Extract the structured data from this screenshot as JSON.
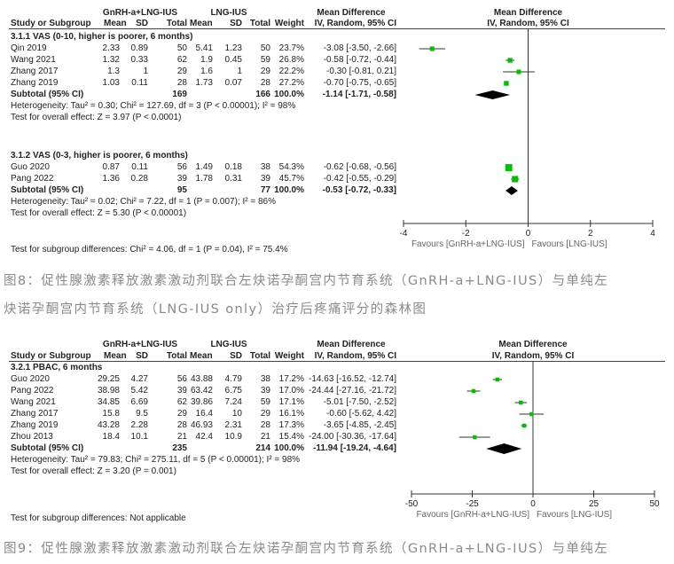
{
  "figures": [
    {
      "header": {
        "group1": "GnRH-a+LNG-IUS",
        "group2": "LNG-IUS",
        "effect": "Mean Difference",
        "columns": [
          "Study or Subgroup",
          "Mean",
          "SD",
          "Total",
          "Mean",
          "SD",
          "Total",
          "Weight",
          "IV, Random, 95% CI"
        ],
        "plot_title": "Mean Difference",
        "plot_subtitle": "IV, Random, 95% CI"
      },
      "subgroups": [
        {
          "title": "3.1.1 VAS (0-10, higher is poorer, 6 months)",
          "studies": [
            {
              "name": "Qin 2019",
              "mean1": "2.33",
              "sd1": "0.89",
              "total1": "50",
              "mean2": "5.41",
              "sd2": "1.23",
              "total2": "50",
              "weight": "23.7%",
              "ci": "-3.08 [-3.50, -2.66]"
            },
            {
              "name": "Wang 2021",
              "mean1": "1.32",
              "sd1": "0.33",
              "total1": "62",
              "mean2": "1.9",
              "sd2": "0.45",
              "total2": "59",
              "weight": "26.8%",
              "ci": "-0.58 [-0.72, -0.44]"
            },
            {
              "name": "Zhang 2017",
              "mean1": "1.3",
              "sd1": "1",
              "total1": "29",
              "mean2": "1.6",
              "sd2": "1",
              "total2": "29",
              "weight": "22.2%",
              "ci": "-0.30 [-0.81, 0.21]"
            },
            {
              "name": "Zhang 2019",
              "mean1": "1.03",
              "sd1": "0.11",
              "total1": "28",
              "mean2": "1.73",
              "sd2": "0.07",
              "total2": "28",
              "weight": "27.2%",
              "ci": "-0.70 [-0.75, -0.65]"
            }
          ],
          "subtotal": {
            "label": "Subtotal (95% CI)",
            "total1": "169",
            "total2": "166",
            "weight": "100.0%",
            "ci": "-1.14 [-1.71, -0.58]"
          },
          "heterogeneity": "Heterogeneity: Tau² = 0.30; Chi² = 127.69, df = 3 (P < 0.00001); I² = 98%",
          "overall": "Test for overall effect: Z = 3.97 (P < 0.0001)"
        },
        {
          "title": "3.1.2 VAS (0-3, higher is poorer, 6 months)",
          "studies": [
            {
              "name": "Guo 2020",
              "mean1": "0.87",
              "sd1": "0.11",
              "total1": "56",
              "mean2": "1.49",
              "sd2": "0.18",
              "total2": "38",
              "weight": "54.3%",
              "ci": "-0.62 [-0.68, -0.56]"
            },
            {
              "name": "Pang 2022",
              "mean1": "1.36",
              "sd1": "0.28",
              "total1": "39",
              "mean2": "1.78",
              "sd2": "0.31",
              "total2": "39",
              "weight": "45.7%",
              "ci": "-0.42 [-0.55, -0.29]"
            }
          ],
          "subtotal": {
            "label": "Subtotal (95% CI)",
            "total1": "95",
            "total2": "77",
            "weight": "100.0%",
            "ci": "-0.53 [-0.72, -0.33]"
          },
          "heterogeneity": "Heterogeneity: Tau² = 0.02; Chi² = 7.22, df = 1 (P = 0.007); I² = 86%",
          "overall": "Test for overall effect: Z = 5.30 (P < 0.00001)"
        }
      ],
      "subgroup_test": "Test for subgroup differences: Chi² = 4.06, df = 1 (P = 0.04), I² = 75.4%",
      "axis": {
        "ticks": [
          "-4",
          "-2",
          "0",
          "2",
          "4"
        ],
        "favours_left": "Favours [GnRH-a+LNG-IUS]",
        "favours_right": "Favours [LNG-IUS]"
      },
      "caption_lines": [
        "图8：促性腺激素释放激素激动剂联合左炔诺孕酮宫内节育系统（GnRH-a+LNG-IUS）与单纯左",
        "炔诺孕酮宫内节育系统（LNG-IUS only）治疗后疼痛评分的森林图"
      ]
    },
    {
      "header": {
        "group1": "GnRH-a+LNG-IUS",
        "group2": "LNG-IUS",
        "effect": "Mean Difference",
        "columns": [
          "Study or Subgroup",
          "Mean",
          "SD",
          "Total",
          "Mean",
          "SD",
          "Total",
          "Weight",
          "IV, Random, 95% CI"
        ],
        "plot_title": "Mean Difference",
        "plot_subtitle": "IV, Random, 95% CI"
      },
      "subgroups": [
        {
          "title": "3.2.1 PBAC, 6 months",
          "studies": [
            {
              "name": "Guo 2020",
              "mean1": "29.25",
              "sd1": "4.27",
              "total1": "56",
              "mean2": "43.88",
              "sd2": "4.79",
              "total2": "38",
              "weight": "17.2%",
              "ci": "-14.63 [-16.52, -12.74]"
            },
            {
              "name": "Pang 2022",
              "mean1": "38.98",
              "sd1": "5.42",
              "total1": "39",
              "mean2": "63.42",
              "sd2": "6.75",
              "total2": "39",
              "weight": "17.0%",
              "ci": "-24.44 [-27.16, -21.72]"
            },
            {
              "name": "Wang 2021",
              "mean1": "34.85",
              "sd1": "6.69",
              "total1": "62",
              "mean2": "39.86",
              "sd2": "7.24",
              "total2": "59",
              "weight": "17.1%",
              "ci": "-5.01 [-7.50, -2.52]"
            },
            {
              "name": "Zhang 2017",
              "mean1": "15.8",
              "sd1": "9.5",
              "total1": "29",
              "mean2": "16.4",
              "sd2": "10",
              "total2": "29",
              "weight": "16.1%",
              "ci": "-0.60 [-5.62, 4.42]"
            },
            {
              "name": "Zhang 2019",
              "mean1": "43.28",
              "sd1": "2.28",
              "total1": "28",
              "mean2": "46.93",
              "sd2": "2.31",
              "total2": "28",
              "weight": "17.3%",
              "ci": "-3.65 [-4.85, -2.45]"
            },
            {
              "name": "Zhou 2013",
              "mean1": "18.4",
              "sd1": "10.1",
              "total1": "21",
              "mean2": "42.4",
              "sd2": "10.9",
              "total2": "21",
              "weight": "15.4%",
              "ci": "-24.00 [-30.36, -17.64]"
            }
          ],
          "subtotal": {
            "label": "Subtotal (95% CI)",
            "total1": "235",
            "total2": "214",
            "weight": "100.0%",
            "ci": "-11.94 [-19.24, -4.64]"
          },
          "heterogeneity": "Heterogeneity: Tau² = 79.83; Chi² = 275.11, df = 5 (P < 0.00001); I² = 98%",
          "overall": "Test for overall effect: Z = 3.20 (P = 0.001)"
        }
      ],
      "subgroup_test": "Test for subgroup differences: Not applicable",
      "axis": {
        "ticks": [
          "-50",
          "-25",
          "0",
          "25",
          "50"
        ],
        "favours_left": "Favours [GnRH-a+LNG-IUS]",
        "favours_right": "Favours [LNG-IUS]"
      },
      "caption_lines": [
        "图9：促性腺激素释放激素激动剂联合左炔诺孕酮宫内节育系统（GnRH-a+LNG-IUS）与单纯左"
      ]
    }
  ],
  "chart_data": [
    {
      "type": "forest",
      "xlim": [
        -4,
        4
      ],
      "xticks": [
        -4,
        -2,
        0,
        2,
        4
      ],
      "marker_color": "#00c000",
      "summary_color": "#000000",
      "groups": [
        {
          "studies": [
            {
              "md": -3.08,
              "lo": -3.5,
              "hi": -2.66,
              "weight": 23.7
            },
            {
              "md": -0.58,
              "lo": -0.72,
              "hi": -0.44,
              "weight": 26.8
            },
            {
              "md": -0.3,
              "lo": -0.81,
              "hi": 0.21,
              "weight": 22.2
            },
            {
              "md": -0.7,
              "lo": -0.75,
              "hi": -0.65,
              "weight": 27.2
            }
          ],
          "summary": {
            "md": -1.14,
            "lo": -1.71,
            "hi": -0.58
          }
        },
        {
          "studies": [
            {
              "md": -0.62,
              "lo": -0.68,
              "hi": -0.56,
              "weight": 54.3
            },
            {
              "md": -0.42,
              "lo": -0.55,
              "hi": -0.29,
              "weight": 45.7
            }
          ],
          "summary": {
            "md": -0.53,
            "lo": -0.72,
            "hi": -0.33
          }
        }
      ]
    },
    {
      "type": "forest",
      "xlim": [
        -50,
        50
      ],
      "xticks": [
        -50,
        -25,
        0,
        25,
        50
      ],
      "marker_color": "#00c000",
      "summary_color": "#000000",
      "groups": [
        {
          "studies": [
            {
              "md": -14.63,
              "lo": -16.52,
              "hi": -12.74,
              "weight": 17.2
            },
            {
              "md": -24.44,
              "lo": -27.16,
              "hi": -21.72,
              "weight": 17.0
            },
            {
              "md": -5.01,
              "lo": -7.5,
              "hi": -2.52,
              "weight": 17.1
            },
            {
              "md": -0.6,
              "lo": -5.62,
              "hi": 4.42,
              "weight": 16.1
            },
            {
              "md": -3.65,
              "lo": -4.85,
              "hi": -2.45,
              "weight": 17.3
            },
            {
              "md": -24.0,
              "lo": -30.36,
              "hi": -17.64,
              "weight": 15.4
            }
          ],
          "summary": {
            "md": -11.94,
            "lo": -19.24,
            "hi": -4.64
          }
        }
      ]
    }
  ]
}
